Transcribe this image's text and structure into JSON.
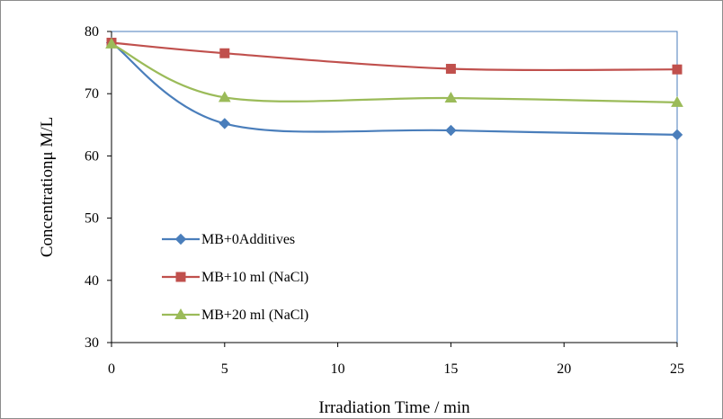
{
  "chart_data": {
    "type": "line",
    "title": "",
    "xlabel": "Irradiation Time / min",
    "ylabel": "Concentrationμ M/L",
    "xlim": [
      0,
      25
    ],
    "ylim": [
      30,
      80
    ],
    "x_ticks": [
      0,
      5,
      10,
      15,
      20,
      25
    ],
    "y_ticks": [
      30,
      40,
      50,
      60,
      70,
      80
    ],
    "grid": false,
    "smooth": true,
    "legend_position": "center-left",
    "series": [
      {
        "name": "MB+0Additives",
        "color": "#4a7ebb",
        "marker": "diamond",
        "points": [
          [
            0,
            78.2
          ],
          [
            5,
            65.2
          ],
          [
            15,
            64.1
          ],
          [
            25,
            63.4
          ]
        ]
      },
      {
        "name": "MB+10 ml (NaCl)",
        "color": "#c0504d",
        "marker": "square",
        "points": [
          [
            0,
            78.2
          ],
          [
            5,
            76.5
          ],
          [
            15,
            74.0
          ],
          [
            25,
            73.9
          ]
        ]
      },
      {
        "name": "MB+20 ml (NaCl)",
        "color": "#9bbb59",
        "marker": "triangle",
        "points": [
          [
            0,
            78.0
          ],
          [
            5,
            69.4
          ],
          [
            15,
            69.3
          ],
          [
            25,
            68.6
          ]
        ]
      }
    ]
  }
}
